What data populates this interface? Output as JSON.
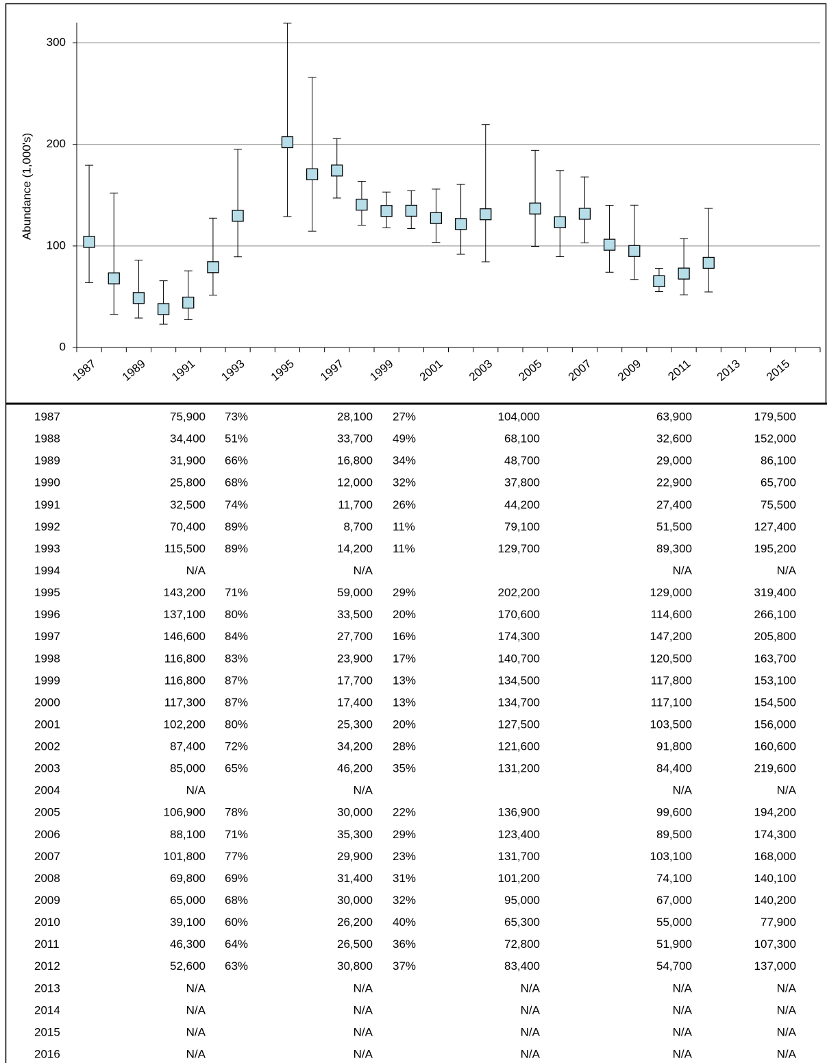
{
  "chart_data": {
    "type": "errorbar",
    "y_label": "Abundance (1,000's)",
    "categories": [
      "1987",
      null,
      "1989",
      null,
      "1991",
      null,
      "1993",
      null,
      "1995",
      null,
      "1997",
      null,
      "1999",
      null,
      "2001",
      null,
      "2003",
      null,
      "2005",
      null,
      "2007",
      null,
      "2009",
      null,
      "2011",
      null,
      "2013",
      null,
      "2015",
      null
    ],
    "values": [
      104.0,
      68.1,
      48.7,
      37.8,
      44.2,
      79.1,
      129.7,
      null,
      202.2,
      170.6,
      174.3,
      140.7,
      134.5,
      134.7,
      127.5,
      121.6,
      131.2,
      null,
      136.9,
      123.4,
      131.7,
      101.2,
      95.0,
      65.3,
      72.8,
      83.4,
      null,
      null,
      null,
      null
    ],
    "lower": [
      63.9,
      32.6,
      29.0,
      22.9,
      27.4,
      51.5,
      89.3,
      null,
      129.0,
      114.6,
      147.2,
      120.5,
      117.8,
      117.1,
      103.5,
      91.8,
      84.4,
      null,
      99.6,
      89.5,
      103.1,
      74.1,
      67.0,
      55.0,
      51.9,
      54.7,
      null,
      null,
      null,
      null
    ],
    "upper": [
      179.5,
      152.0,
      86.1,
      65.7,
      75.5,
      127.4,
      195.2,
      null,
      319.4,
      266.1,
      205.8,
      163.7,
      153.1,
      154.5,
      156.0,
      160.6,
      219.6,
      null,
      194.2,
      174.3,
      168.0,
      140.1,
      140.2,
      77.9,
      107.3,
      137.0,
      null,
      null,
      null,
      null
    ],
    "color": "#b6dde8",
    "ylim": [
      0,
      320
    ],
    "yticks": [
      0,
      100,
      200,
      300
    ],
    "grid": true
  },
  "table": {
    "rows": [
      [
        "1987",
        "75,900",
        "73%",
        "28,100",
        "27%",
        "104,000",
        "63,900",
        "179,500"
      ],
      [
        "1988",
        "34,400",
        "51%",
        "33,700",
        "49%",
        "68,100",
        "32,600",
        "152,000"
      ],
      [
        "1989",
        "31,900",
        "66%",
        "16,800",
        "34%",
        "48,700",
        "29,000",
        "86,100"
      ],
      [
        "1990",
        "25,800",
        "68%",
        "12,000",
        "32%",
        "37,800",
        "22,900",
        "65,700"
      ],
      [
        "1991",
        "32,500",
        "74%",
        "11,700",
        "26%",
        "44,200",
        "27,400",
        "75,500"
      ],
      [
        "1992",
        "70,400",
        "89%",
        "8,700",
        "11%",
        "79,100",
        "51,500",
        "127,400"
      ],
      [
        "1993",
        "115,500",
        "89%",
        "14,200",
        "11%",
        "129,700",
        "89,300",
        "195,200"
      ],
      [
        "1994",
        "N/A",
        null,
        "N/A",
        null,
        null,
        "N/A",
        "N/A"
      ],
      [
        "1995",
        "143,200",
        "71%",
        "59,000",
        "29%",
        "202,200",
        "129,000",
        "319,400"
      ],
      [
        "1996",
        "137,100",
        "80%",
        "33,500",
        "20%",
        "170,600",
        "114,600",
        "266,100"
      ],
      [
        "1997",
        "146,600",
        "84%",
        "27,700",
        "16%",
        "174,300",
        "147,200",
        "205,800"
      ],
      [
        "1998",
        "116,800",
        "83%",
        "23,900",
        "17%",
        "140,700",
        "120,500",
        "163,700"
      ],
      [
        "1999",
        "116,800",
        "87%",
        "17,700",
        "13%",
        "134,500",
        "117,800",
        "153,100"
      ],
      [
        "2000",
        "117,300",
        "87%",
        "17,400",
        "13%",
        "134,700",
        "117,100",
        "154,500"
      ],
      [
        "2001",
        "102,200",
        "80%",
        "25,300",
        "20%",
        "127,500",
        "103,500",
        "156,000"
      ],
      [
        "2002",
        "87,400",
        "72%",
        "34,200",
        "28%",
        "121,600",
        "91,800",
        "160,600"
      ],
      [
        "2003",
        "85,000",
        "65%",
        "46,200",
        "35%",
        "131,200",
        "84,400",
        "219,600"
      ],
      [
        "2004",
        "N/A",
        null,
        "N/A",
        null,
        null,
        "N/A",
        "N/A"
      ],
      [
        "2005",
        "106,900",
        "78%",
        "30,000",
        "22%",
        "136,900",
        "99,600",
        "194,200"
      ],
      [
        "2006",
        "88,100",
        "71%",
        "35,300",
        "29%",
        "123,400",
        "89,500",
        "174,300"
      ],
      [
        "2007",
        "101,800",
        "77%",
        "29,900",
        "23%",
        "131,700",
        "103,100",
        "168,000"
      ],
      [
        "2008",
        "69,800",
        "69%",
        "31,400",
        "31%",
        "101,200",
        "74,100",
        "140,100"
      ],
      [
        "2009",
        "65,000",
        "68%",
        "30,000",
        "32%",
        "95,000",
        "67,000",
        "140,200"
      ],
      [
        "2010",
        "39,100",
        "60%",
        "26,200",
        "40%",
        "65,300",
        "55,000",
        "77,900"
      ],
      [
        "2011",
        "46,300",
        "64%",
        "26,500",
        "36%",
        "72,800",
        "51,900",
        "107,300"
      ],
      [
        "2012",
        "52,600",
        "63%",
        "30,800",
        "37%",
        "83,400",
        "54,700",
        "137,000"
      ],
      [
        "2013",
        "N/A",
        null,
        "N/A",
        null,
        "N/A",
        "N/A",
        "N/A"
      ],
      [
        "2014",
        "N/A",
        null,
        "N/A",
        null,
        "N/A",
        "N/A",
        "N/A"
      ],
      [
        "2015",
        "N/A",
        null,
        "N/A",
        null,
        "N/A",
        "N/A",
        "N/A"
      ],
      [
        "2016",
        "N/A",
        null,
        "N/A",
        null,
        "N/A",
        "N/A",
        "N/A"
      ]
    ]
  }
}
